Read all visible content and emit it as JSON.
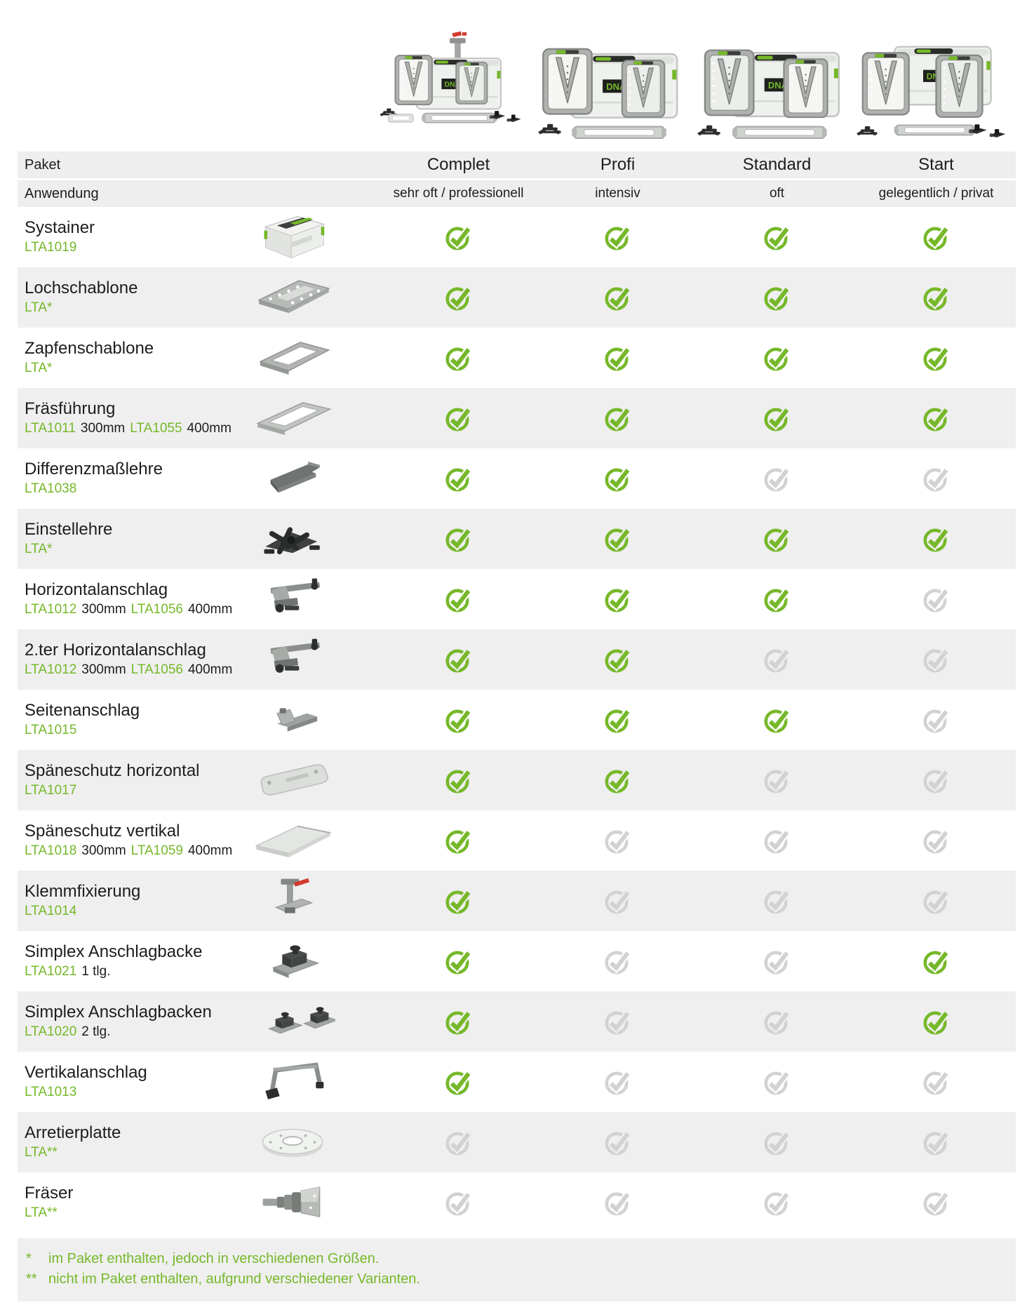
{
  "brand": {
    "logo_text": "DNATOOL"
  },
  "header": {
    "paket_label": "Paket",
    "anwendung_label": "Anwendung",
    "packages": [
      {
        "name": "Complet",
        "usage": "sehr oft / professionell"
      },
      {
        "name": "Profi",
        "usage": "intensiv"
      },
      {
        "name": "Standard",
        "usage": "oft"
      },
      {
        "name": "Start",
        "usage": "gelegentlich / privat"
      }
    ]
  },
  "table": {
    "rows": [
      {
        "name": "Systainer",
        "icon": "systainer",
        "code": [
          {
            "t": "LTA1019",
            "green": true
          }
        ],
        "checks": [
          "on",
          "on",
          "on",
          "on"
        ]
      },
      {
        "name": "Lochschablone",
        "icon": "hole-template",
        "code": [
          {
            "t": "LTA*",
            "green": true
          }
        ],
        "checks": [
          "on",
          "on",
          "on",
          "on"
        ]
      },
      {
        "name": "Zapfenschablone",
        "icon": "tenon-template",
        "code": [
          {
            "t": "LTA*",
            "green": true
          }
        ],
        "checks": [
          "on",
          "on",
          "on",
          "on"
        ]
      },
      {
        "name": "Fräsführung",
        "icon": "router-guide",
        "code": [
          {
            "t": "LTA1011",
            "green": true
          },
          {
            "t": "300mm",
            "green": false
          },
          {
            "t": "LTA1055",
            "green": true
          },
          {
            "t": "400mm",
            "green": false
          }
        ],
        "checks": [
          "on",
          "on",
          "on",
          "on"
        ]
      },
      {
        "name": "Differenzmaßlehre",
        "icon": "diff-gauge",
        "code": [
          {
            "t": "LTA1038",
            "green": true
          }
        ],
        "checks": [
          "on",
          "on",
          "off",
          "off"
        ]
      },
      {
        "name": "Einstellehre",
        "icon": "setting-gauge",
        "code": [
          {
            "t": "LTA*",
            "green": true
          }
        ],
        "checks": [
          "on",
          "on",
          "on",
          "on"
        ]
      },
      {
        "name": "Horizontalanschlag",
        "icon": "horizontal-stop",
        "code": [
          {
            "t": "LTA1012",
            "green": true
          },
          {
            "t": "300mm",
            "green": false
          },
          {
            "t": "LTA1056",
            "green": true
          },
          {
            "t": "400mm",
            "green": false
          }
        ],
        "checks": [
          "on",
          "on",
          "on",
          "off"
        ]
      },
      {
        "name": "2.ter Horizontalanschlag",
        "icon": "horizontal-stop",
        "code": [
          {
            "t": "LTA1012",
            "green": true
          },
          {
            "t": "300mm",
            "green": false
          },
          {
            "t": "LTA1056",
            "green": true
          },
          {
            "t": "400mm",
            "green": false
          }
        ],
        "checks": [
          "on",
          "on",
          "off",
          "off"
        ]
      },
      {
        "name": "Seitenanschlag",
        "icon": "side-stop",
        "code": [
          {
            "t": "LTA1015",
            "green": true
          }
        ],
        "checks": [
          "on",
          "on",
          "on",
          "off"
        ]
      },
      {
        "name": "Späneschutz horizontal",
        "icon": "chip-guard-h",
        "code": [
          {
            "t": "LTA1017",
            "green": true
          }
        ],
        "checks": [
          "on",
          "on",
          "off",
          "off"
        ]
      },
      {
        "name": "Späneschutz vertikal",
        "icon": "chip-guard-v",
        "code": [
          {
            "t": "LTA1018",
            "green": true
          },
          {
            "t": "300mm",
            "green": false
          },
          {
            "t": "LTA1059",
            "green": true
          },
          {
            "t": "400mm",
            "green": false
          }
        ],
        "checks": [
          "on",
          "off",
          "off",
          "off"
        ]
      },
      {
        "name": "Klemmfixierung",
        "icon": "clamp-fixture",
        "code": [
          {
            "t": "LTA1014",
            "green": true
          }
        ],
        "checks": [
          "on",
          "off",
          "off",
          "off"
        ]
      },
      {
        "name": "Simplex Anschlagbacke",
        "icon": "simplex-jaw",
        "code": [
          {
            "t": "LTA1021",
            "green": true
          },
          {
            "t": "1 tlg.",
            "green": false
          }
        ],
        "checks": [
          "on",
          "off",
          "off",
          "on"
        ]
      },
      {
        "name": "Simplex Anschlagbacken",
        "icon": "simplex-jaws",
        "code": [
          {
            "t": "LTA1020",
            "green": true
          },
          {
            "t": "2 tlg.",
            "green": false
          }
        ],
        "checks": [
          "on",
          "off",
          "off",
          "on"
        ]
      },
      {
        "name": "Vertikalanschlag",
        "icon": "vertical-stop",
        "code": [
          {
            "t": "LTA1013",
            "green": true
          }
        ],
        "checks": [
          "on",
          "off",
          "off",
          "off"
        ]
      },
      {
        "name": "Arretierplatte",
        "icon": "lock-plate",
        "code": [
          {
            "t": "LTA**",
            "green": true
          }
        ],
        "checks": [
          "off",
          "off",
          "off",
          "off"
        ]
      },
      {
        "name": "Fräser",
        "icon": "router-bit",
        "code": [
          {
            "t": "LTA**",
            "green": true
          }
        ],
        "checks": [
          "off",
          "off",
          "off",
          "off"
        ]
      }
    ]
  },
  "footnotes": [
    {
      "marker": "*",
      "text": "im Paket enthalten, jedoch in verschiedenen Größen."
    },
    {
      "marker": "**",
      "text": "nicht im Paket enthalten, aufgrund verschiedener Varianten."
    }
  ],
  "colors": {
    "accent_green": "#76b82a",
    "check_on": "#76b82a",
    "check_off": "#d2d2d2",
    "row_alt_bg": "#efefef",
    "header_bg": "#eeeeee",
    "text_dark": "#1d1d1b",
    "red_accent": "#d23b2f"
  }
}
